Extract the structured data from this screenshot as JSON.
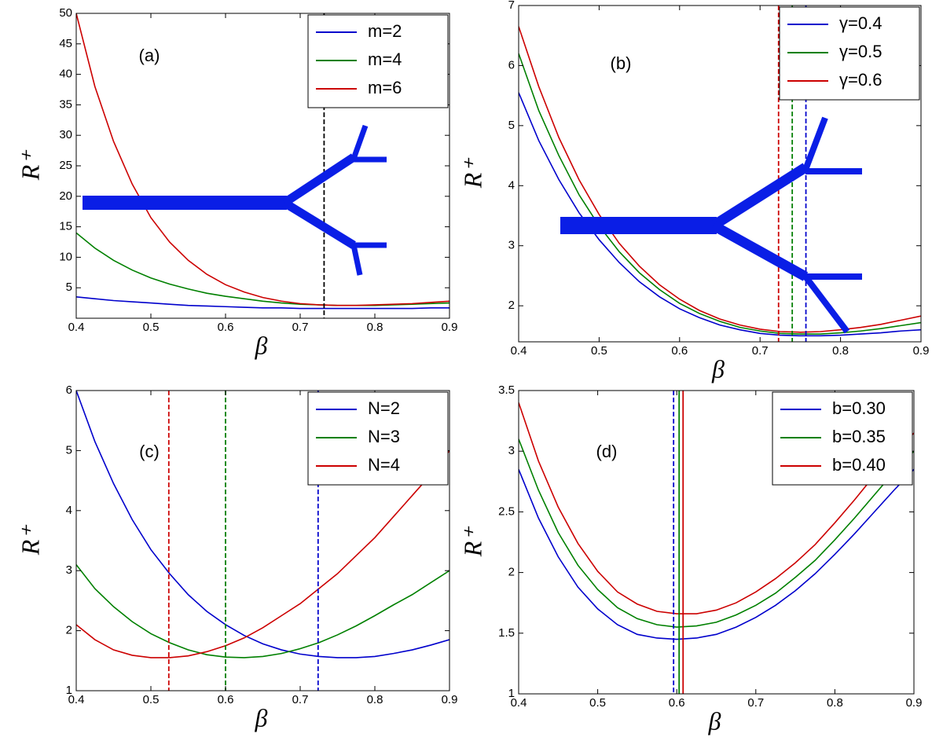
{
  "chart_data": [
    {
      "type": "line",
      "annotation": "(a)",
      "xlabel": "β",
      "ylabel": "R⁺",
      "x": [
        0.4,
        0.425,
        0.45,
        0.475,
        0.5,
        0.525,
        0.55,
        0.575,
        0.6,
        0.625,
        0.65,
        0.675,
        0.7,
        0.725,
        0.75,
        0.775,
        0.8,
        0.825,
        0.85,
        0.875,
        0.9
      ],
      "series": [
        {
          "name": "m=2",
          "color": "#0000cc",
          "values": [
            3.5,
            3.2,
            2.9,
            2.7,
            2.5,
            2.3,
            2.1,
            2.0,
            1.9,
            1.8,
            1.7,
            1.7,
            1.6,
            1.6,
            1.6,
            1.6,
            1.6,
            1.6,
            1.6,
            1.7,
            1.7
          ]
        },
        {
          "name": "m=4",
          "color": "#008000",
          "values": [
            14,
            11.5,
            9.5,
            7.9,
            6.6,
            5.6,
            4.8,
            4.1,
            3.6,
            3.2,
            2.8,
            2.5,
            2.3,
            2.2,
            2.1,
            2.1,
            2.1,
            2.2,
            2.3,
            2.4,
            2.5
          ]
        },
        {
          "name": "m=6",
          "color": "#cc0000",
          "values": [
            50,
            38,
            29,
            22,
            16.5,
            12.5,
            9.5,
            7.2,
            5.5,
            4.3,
            3.4,
            2.8,
            2.4,
            2.2,
            2.1,
            2.1,
            2.2,
            2.3,
            2.4,
            2.6,
            2.8
          ]
        }
      ],
      "vlines": [
        {
          "x": 0.732,
          "color": "#000000",
          "dashed": true
        }
      ],
      "xlim": [
        0.4,
        0.9
      ],
      "xticks": [
        0.4,
        0.5,
        0.6,
        0.7,
        0.8,
        0.9
      ],
      "ylim": [
        0,
        50
      ],
      "yticks": [
        5,
        10,
        15,
        20,
        25,
        30,
        35,
        40,
        45,
        50
      ],
      "legend": "top-right"
    },
    {
      "type": "line",
      "annotation": "(b)",
      "xlabel": "β",
      "ylabel": "R⁺",
      "x": [
        0.4,
        0.425,
        0.45,
        0.475,
        0.5,
        0.525,
        0.55,
        0.575,
        0.6,
        0.625,
        0.65,
        0.675,
        0.7,
        0.725,
        0.75,
        0.775,
        0.8,
        0.825,
        0.85,
        0.875,
        0.9
      ],
      "series": [
        {
          "name": "γ=0.4",
          "color": "#0000cc",
          "values": [
            5.55,
            4.75,
            4.1,
            3.55,
            3.1,
            2.72,
            2.4,
            2.15,
            1.95,
            1.8,
            1.68,
            1.6,
            1.54,
            1.51,
            1.5,
            1.5,
            1.51,
            1.53,
            1.55,
            1.58,
            1.6
          ]
        },
        {
          "name": "γ=0.5",
          "color": "#008000",
          "values": [
            6.2,
            5.25,
            4.5,
            3.85,
            3.33,
            2.9,
            2.55,
            2.27,
            2.04,
            1.87,
            1.74,
            1.64,
            1.58,
            1.54,
            1.53,
            1.53,
            1.55,
            1.58,
            1.62,
            1.67,
            1.72
          ]
        },
        {
          "name": "γ=0.6",
          "color": "#cc0000",
          "values": [
            6.65,
            5.65,
            4.8,
            4.1,
            3.52,
            3.04,
            2.66,
            2.35,
            2.11,
            1.92,
            1.78,
            1.68,
            1.61,
            1.57,
            1.56,
            1.57,
            1.6,
            1.64,
            1.69,
            1.76,
            1.83
          ]
        }
      ],
      "vlines": [
        {
          "x": 0.723,
          "color": "#cc0000",
          "dashed": true
        },
        {
          "x": 0.74,
          "color": "#008000",
          "dashed": true
        },
        {
          "x": 0.757,
          "color": "#0000cc",
          "dashed": true
        }
      ],
      "xlim": [
        0.4,
        0.9
      ],
      "xticks": [
        0.4,
        0.5,
        0.6,
        0.7,
        0.8,
        0.9
      ],
      "ylim": [
        1.4,
        7
      ],
      "yticks": [
        2,
        3,
        4,
        5,
        6,
        7
      ],
      "legend": "top-right"
    },
    {
      "type": "line",
      "annotation": "(c)",
      "xlabel": "β",
      "ylabel": "R⁺",
      "x": [
        0.4,
        0.425,
        0.45,
        0.475,
        0.5,
        0.525,
        0.55,
        0.575,
        0.6,
        0.625,
        0.65,
        0.675,
        0.7,
        0.725,
        0.75,
        0.775,
        0.8,
        0.825,
        0.85,
        0.875,
        0.9
      ],
      "series": [
        {
          "name": "N=2",
          "color": "#0000cc",
          "values": [
            6,
            5.15,
            4.45,
            3.85,
            3.35,
            2.95,
            2.6,
            2.32,
            2.1,
            1.92,
            1.78,
            1.68,
            1.61,
            1.57,
            1.55,
            1.55,
            1.57,
            1.62,
            1.68,
            1.76,
            1.85
          ]
        },
        {
          "name": "N=3",
          "color": "#008000",
          "values": [
            3.1,
            2.7,
            2.4,
            2.15,
            1.95,
            1.8,
            1.68,
            1.6,
            1.56,
            1.55,
            1.57,
            1.62,
            1.7,
            1.8,
            1.93,
            2.08,
            2.25,
            2.43,
            2.6,
            2.8,
            3.0
          ]
        },
        {
          "name": "N=4",
          "color": "#cc0000",
          "values": [
            2.1,
            1.85,
            1.68,
            1.59,
            1.55,
            1.55,
            1.58,
            1.65,
            1.75,
            1.88,
            2.05,
            2.25,
            2.45,
            2.7,
            2.95,
            3.25,
            3.55,
            3.9,
            4.25,
            4.6,
            5.0
          ]
        }
      ],
      "vlines": [
        {
          "x": 0.524,
          "color": "#cc0000",
          "dashed": true
        },
        {
          "x": 0.6,
          "color": "#008000",
          "dashed": true
        },
        {
          "x": 0.724,
          "color": "#0000cc",
          "dashed": true
        }
      ],
      "xlim": [
        0.4,
        0.9
      ],
      "xticks": [
        0.4,
        0.5,
        0.6,
        0.7,
        0.8,
        0.9
      ],
      "ylim": [
        1,
        6
      ],
      "yticks": [
        1,
        2,
        3,
        4,
        5,
        6
      ],
      "legend": "top-right"
    },
    {
      "type": "line",
      "annotation": "(d)",
      "xlabel": "β",
      "ylabel": "R⁺",
      "x": [
        0.4,
        0.425,
        0.45,
        0.475,
        0.5,
        0.525,
        0.55,
        0.575,
        0.6,
        0.625,
        0.65,
        0.675,
        0.7,
        0.725,
        0.75,
        0.775,
        0.8,
        0.825,
        0.85,
        0.875,
        0.9
      ],
      "series": [
        {
          "name": "b=0.30",
          "color": "#0000cc",
          "values": [
            2.85,
            2.45,
            2.13,
            1.88,
            1.7,
            1.57,
            1.49,
            1.46,
            1.45,
            1.46,
            1.49,
            1.55,
            1.63,
            1.73,
            1.85,
            1.99,
            2.15,
            2.32,
            2.5,
            2.68,
            2.85
          ]
        },
        {
          "name": "b=0.35",
          "color": "#008000",
          "values": [
            3.1,
            2.68,
            2.33,
            2.06,
            1.86,
            1.71,
            1.62,
            1.57,
            1.55,
            1.56,
            1.59,
            1.65,
            1.73,
            1.83,
            1.96,
            2.1,
            2.27,
            2.45,
            2.64,
            2.83,
            3.0
          ]
        },
        {
          "name": "b=0.40",
          "color": "#cc0000",
          "values": [
            3.4,
            2.92,
            2.54,
            2.24,
            2.01,
            1.84,
            1.74,
            1.68,
            1.66,
            1.66,
            1.69,
            1.75,
            1.84,
            1.95,
            2.08,
            2.23,
            2.41,
            2.6,
            2.8,
            2.98,
            3.15
          ]
        }
      ],
      "vlines": [
        {
          "x": 0.596,
          "color": "#0000cc",
          "dashed": true
        },
        {
          "x": 0.603,
          "color": "#008000",
          "dashed": false
        },
        {
          "x": 0.608,
          "color": "#cc0000",
          "dashed": false
        }
      ],
      "xlim": [
        0.4,
        0.9
      ],
      "xticks": [
        0.4,
        0.5,
        0.6,
        0.7,
        0.8,
        0.9
      ],
      "ylim": [
        1,
        3.5
      ],
      "yticks": [
        1,
        1.5,
        2,
        2.5,
        3,
        3.5
      ],
      "legend": "top-right"
    }
  ]
}
